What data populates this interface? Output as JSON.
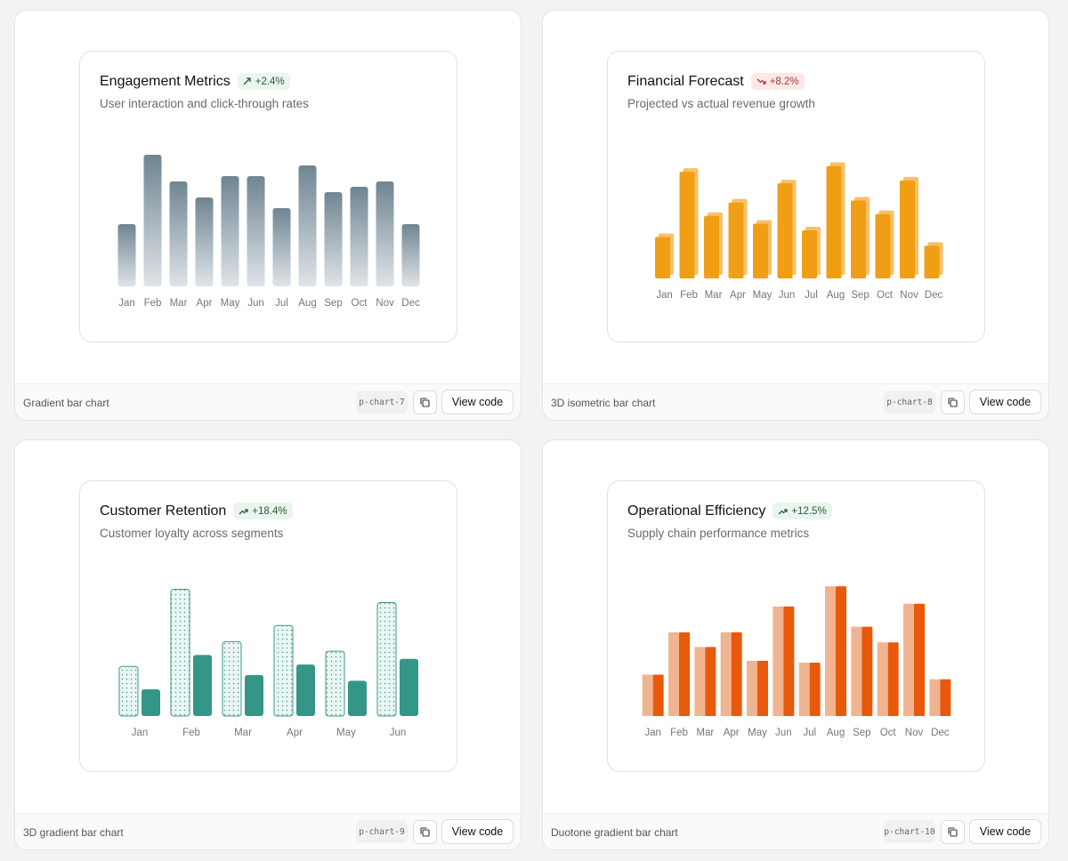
{
  "tiles": [
    {
      "footer_title": "Gradient bar chart",
      "tag": "p-chart-7",
      "view_label": "View code",
      "card": {
        "title": "Engagement Metrics",
        "badge": "+2.4%",
        "badge_trend": "up",
        "subtitle": "User interaction and click-through rates"
      },
      "chart_data": {
        "type": "bar",
        "style": "gradient",
        "categories": [
          "Jan",
          "Feb",
          "Mar",
          "Apr",
          "May",
          "Jun",
          "Jul",
          "Aug",
          "Sep",
          "Oct",
          "Nov",
          "Dec"
        ],
        "values": [
          70,
          148,
          118,
          100,
          124,
          124,
          88,
          136,
          106,
          112,
          118,
          70
        ],
        "ylim": [
          0,
          150
        ],
        "colors": {
          "top": "#6f8592",
          "bottom": "#dfe4e8"
        }
      }
    },
    {
      "footer_title": "3D isometric bar chart",
      "tag": "p-chart-8",
      "view_label": "View code",
      "card": {
        "title": "Financial Forecast",
        "badge": "+8.2%",
        "badge_trend": "down",
        "subtitle": "Projected vs actual revenue growth"
      },
      "chart_data": {
        "type": "bar",
        "style": "isometric",
        "categories": [
          "Jan",
          "Feb",
          "Mar",
          "Apr",
          "May",
          "Jun",
          "Jul",
          "Aug",
          "Sep",
          "Oct",
          "Nov",
          "Dec"
        ],
        "values": [
          43,
          111,
          65,
          79,
          57,
          99,
          50,
          117,
          81,
          67,
          102,
          34
        ],
        "ylim": [
          0,
          125
        ],
        "colors": {
          "front": "#f09e14",
          "back": "#f8c068"
        }
      }
    },
    {
      "footer_title": "3D gradient bar chart",
      "tag": "p-chart-9",
      "view_label": "View code",
      "card": {
        "title": "Customer Retention",
        "badge": "+18.4%",
        "badge_trend": "up",
        "subtitle": "Customer loyalty across segments"
      },
      "chart_data": {
        "type": "bar",
        "style": "paired-dotted",
        "categories": [
          "Jan",
          "Feb",
          "Mar",
          "Apr",
          "May",
          "Jun"
        ],
        "series": [
          {
            "values": [
              52,
              133,
              78,
              95,
              68,
              119
            ]
          },
          {
            "values": [
              28,
              64,
              43,
              54,
              37,
              60
            ]
          }
        ],
        "ylim": [
          0,
          140
        ],
        "colors": {
          "outline": "#3a9a8a",
          "fill": "#eaf6f3",
          "solid": "#349686"
        }
      }
    },
    {
      "footer_title": "Duotone gradient bar chart",
      "tag": "p-chart-10",
      "view_label": "View code",
      "card": {
        "title": "Operational Efficiency",
        "badge": "+12.5%",
        "badge_trend": "up",
        "subtitle": "Supply chain performance metrics"
      },
      "chart_data": {
        "type": "bar",
        "style": "duotone",
        "categories": [
          "Jan",
          "Feb",
          "Mar",
          "Apr",
          "May",
          "Jun",
          "Jul",
          "Aug",
          "Sep",
          "Oct",
          "Nov",
          "Dec"
        ],
        "values": [
          45,
          91,
          75,
          91,
          60,
          119,
          58,
          141,
          97,
          80,
          122,
          40
        ],
        "ylim": [
          0,
          145
        ],
        "colors": {
          "light": "#f1b491",
          "dark": "#e8590c"
        }
      }
    }
  ]
}
